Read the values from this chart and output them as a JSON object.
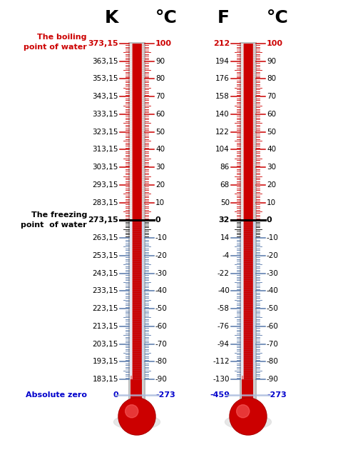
{
  "background_color": "#ffffff",
  "celsius_vals": [
    100,
    90,
    80,
    70,
    60,
    50,
    40,
    30,
    20,
    10,
    0,
    -10,
    -20,
    -30,
    -40,
    -50,
    -60,
    -70,
    -80,
    -90
  ],
  "kelvin_labels": [
    "373,15",
    "363,15",
    "353,15",
    "343,15",
    "333,15",
    "323,15",
    "313,15",
    "303,15",
    "293,15",
    "283,15",
    "273,15",
    "263,15",
    "253,15",
    "243,15",
    "233,15",
    "223,15",
    "213,15",
    "203,15",
    "193,15",
    "183,15"
  ],
  "fahrenheit_labels": [
    "212",
    "194",
    "176",
    "158",
    "140",
    "122",
    "104",
    "86",
    "68",
    "50",
    "32",
    "14",
    "-4",
    "-22",
    "-40",
    "-58",
    "-76",
    "-94",
    "-112",
    "-130"
  ],
  "celsius_labels": [
    "100",
    "90",
    "80",
    "70",
    "60",
    "50",
    "40",
    "30",
    "20",
    "10",
    "0",
    "-10",
    "-20",
    "-30",
    "-40",
    "-50",
    "-60",
    "-70",
    "-80",
    "-90"
  ],
  "abs_zero_kelvin": "0",
  "abs_zero_fahrenheit": "-459",
  "abs_zero_celsius": "-273",
  "abs_zero_label": "Absolute zero",
  "boiling_label": "The boiling\npoint of water",
  "freezing_label": "The freezing\npoint  of water",
  "header_K": "K",
  "header_C1": "°C",
  "header_F": "F",
  "header_C2": "°C",
  "red": "#cc0000",
  "blue": "#0000cc",
  "black": "#000000",
  "tick_red": "#cc0000",
  "tick_blue": "#5577aa",
  "tick_black": "#000000",
  "tube_gray": "#d0d0d0",
  "tube_blue_gray": "#c8d4e8",
  "tube_border": "#aaaaaa",
  "tube_highlight": "#f0f0f0",
  "mercury_red": "#cc0000",
  "bulb_red": "#cc0000",
  "bulb_highlight": "#ff4444"
}
